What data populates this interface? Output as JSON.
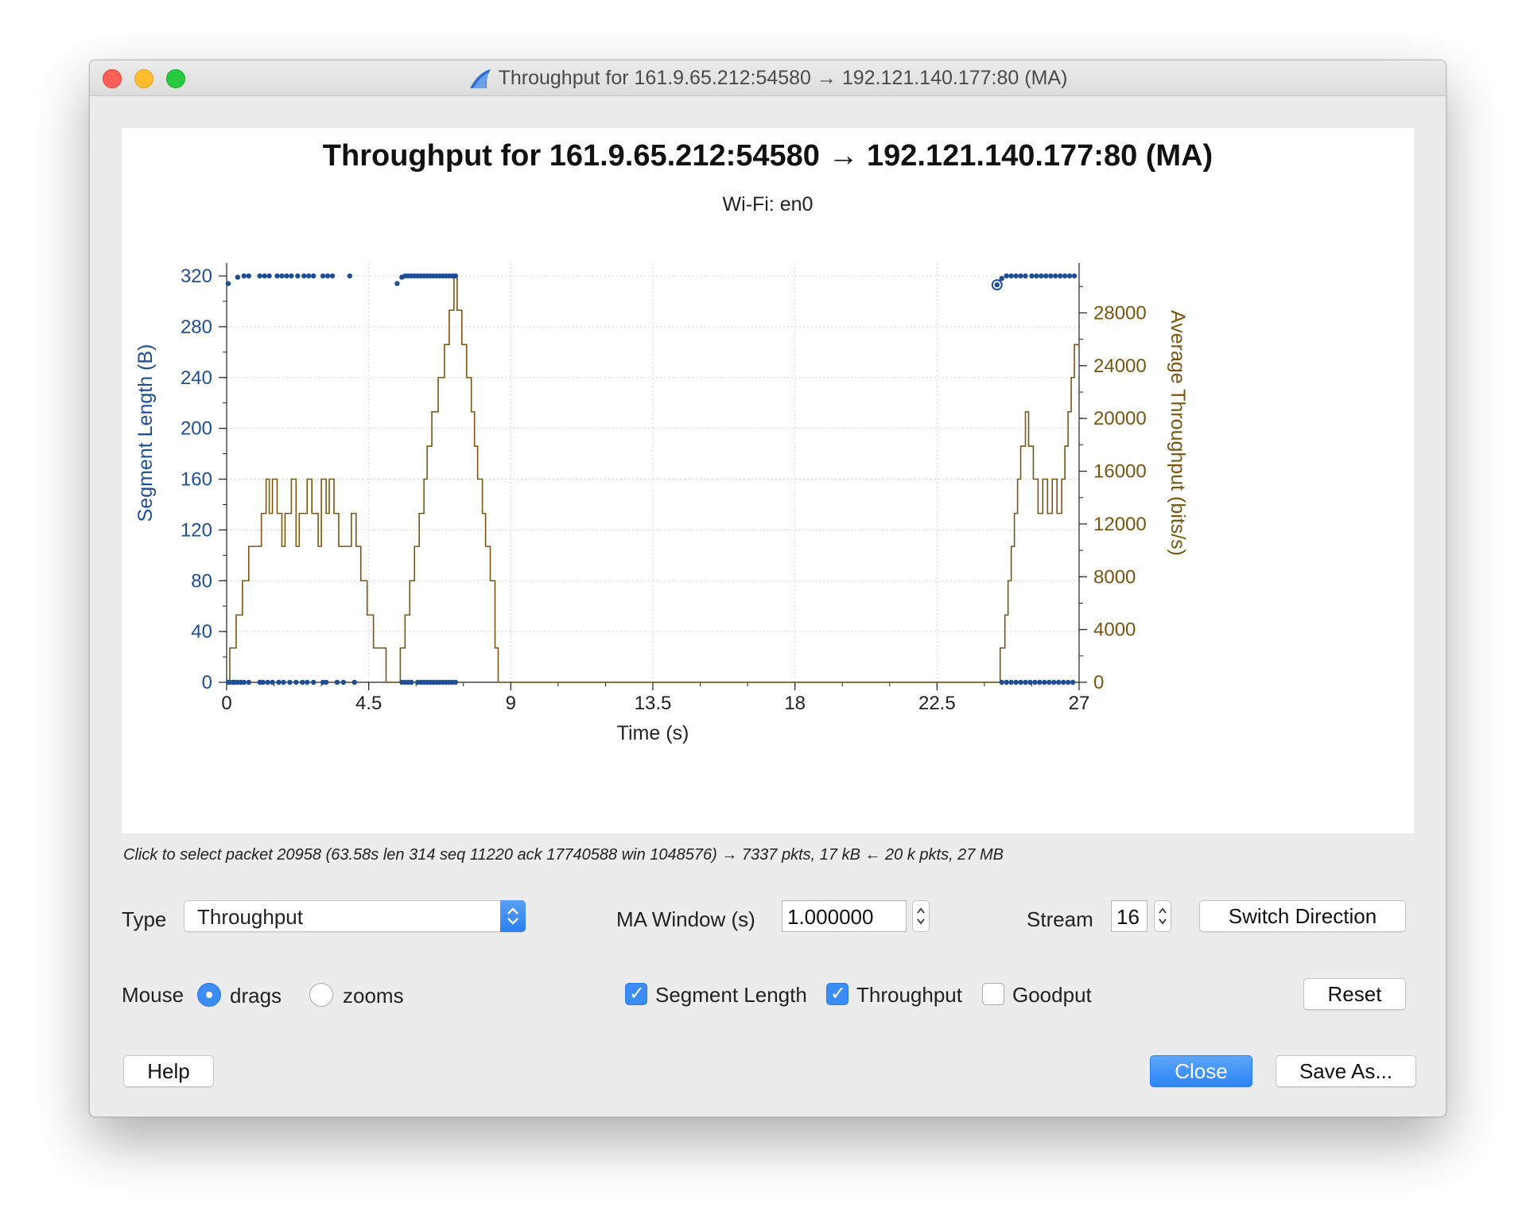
{
  "window": {
    "title": "Throughput for 161.9.65.212:54580 → 192.121.140.177:80 (MA)",
    "icon": "wireshark-fin-icon"
  },
  "plot": {
    "title": "Throughput for 161.9.65.212:54580 → 192.121.140.177:80 (MA)",
    "subtitle": "Wi-Fi: en0"
  },
  "chart_data": {
    "type": "scatter+line",
    "title": "Throughput for 161.9.65.212:54580 → 192.121.140.177:80 (MA)",
    "subtitle": "Wi-Fi: en0",
    "xlabel": "Time (s)",
    "ylabel_left": "Segment Length (B)",
    "ylabel_right": "Average Throughput (bits/s)",
    "xlim": [
      0,
      27
    ],
    "ylim_left": [
      0,
      320
    ],
    "ylim_right": [
      0,
      30800
    ],
    "x_ticks": [
      "0",
      "4.5",
      "9",
      "13.5",
      "18",
      "22.5",
      "27"
    ],
    "y_left_ticks": [
      "0",
      "40",
      "80",
      "120",
      "160",
      "200",
      "240",
      "280",
      "320"
    ],
    "y_right_ticks": [
      "0",
      "4000",
      "8000",
      "12000",
      "16000",
      "20000",
      "24000",
      "28000"
    ],
    "grid": true,
    "colors": {
      "segment": "#1f4e96",
      "throughput": "#7a5510"
    },
    "series": [
      {
        "name": "Segment Length",
        "style": "points",
        "points": [
          [
            0.05,
            314
          ],
          [
            0.35,
            319
          ],
          [
            0.55,
            320
          ],
          [
            0.7,
            320
          ],
          [
            1.05,
            320
          ],
          [
            1.2,
            320
          ],
          [
            1.35,
            320
          ],
          [
            1.6,
            320
          ],
          [
            1.75,
            320
          ],
          [
            1.9,
            320
          ],
          [
            2.05,
            320
          ],
          [
            2.25,
            320
          ],
          [
            2.45,
            320
          ],
          [
            2.6,
            320
          ],
          [
            2.75,
            320
          ],
          [
            3.05,
            320
          ],
          [
            3.2,
            320
          ],
          [
            3.35,
            320
          ],
          [
            3.9,
            320
          ],
          [
            0.05,
            0
          ],
          [
            0.1,
            0
          ],
          [
            0.2,
            0
          ],
          [
            0.25,
            0
          ],
          [
            0.35,
            0
          ],
          [
            0.45,
            0
          ],
          [
            0.55,
            0
          ],
          [
            0.7,
            0
          ],
          [
            1.05,
            0
          ],
          [
            1.15,
            0
          ],
          [
            1.3,
            0
          ],
          [
            1.45,
            0
          ],
          [
            1.65,
            0
          ],
          [
            1.8,
            0
          ],
          [
            2.0,
            0
          ],
          [
            2.2,
            0
          ],
          [
            2.4,
            0
          ],
          [
            2.55,
            0
          ],
          [
            2.75,
            0
          ],
          [
            3.05,
            0
          ],
          [
            3.15,
            0
          ],
          [
            3.5,
            0
          ],
          [
            3.7,
            0
          ],
          [
            4.05,
            0
          ],
          [
            5.4,
            314
          ],
          [
            5.55,
            319
          ],
          [
            5.65,
            320
          ],
          [
            5.75,
            320
          ],
          [
            5.85,
            320
          ],
          [
            5.95,
            320
          ],
          [
            6.05,
            320
          ],
          [
            6.15,
            320
          ],
          [
            6.25,
            320
          ],
          [
            6.35,
            320
          ],
          [
            6.45,
            320
          ],
          [
            6.55,
            320
          ],
          [
            6.65,
            320
          ],
          [
            6.75,
            320
          ],
          [
            6.85,
            320
          ],
          [
            6.95,
            320
          ],
          [
            7.05,
            320
          ],
          [
            7.15,
            320
          ],
          [
            7.25,
            320
          ],
          [
            5.55,
            0
          ],
          [
            5.65,
            0
          ],
          [
            5.75,
            0
          ],
          [
            5.85,
            0
          ],
          [
            6.05,
            0
          ],
          [
            6.15,
            0
          ],
          [
            6.25,
            0
          ],
          [
            6.35,
            0
          ],
          [
            6.45,
            0
          ],
          [
            6.55,
            0
          ],
          [
            6.65,
            0
          ],
          [
            6.75,
            0
          ],
          [
            6.85,
            0
          ],
          [
            6.95,
            0
          ],
          [
            7.05,
            0
          ],
          [
            7.15,
            0
          ],
          [
            7.25,
            0
          ],
          [
            24.4,
            313
          ],
          [
            24.55,
            318
          ],
          [
            24.7,
            320
          ],
          [
            24.85,
            320
          ],
          [
            25.0,
            320
          ],
          [
            25.15,
            320
          ],
          [
            25.3,
            320
          ],
          [
            25.5,
            320
          ],
          [
            25.65,
            320
          ],
          [
            25.8,
            320
          ],
          [
            25.95,
            320
          ],
          [
            26.1,
            320
          ],
          [
            26.25,
            320
          ],
          [
            26.4,
            320
          ],
          [
            26.55,
            320
          ],
          [
            26.7,
            320
          ],
          [
            26.85,
            320
          ],
          [
            24.55,
            0
          ],
          [
            24.7,
            0
          ],
          [
            24.85,
            0
          ],
          [
            25.0,
            0
          ],
          [
            25.15,
            0
          ],
          [
            25.3,
            0
          ],
          [
            25.45,
            0
          ],
          [
            25.6,
            0
          ],
          [
            25.75,
            0
          ],
          [
            25.9,
            0
          ],
          [
            26.05,
            0
          ],
          [
            26.2,
            0
          ],
          [
            26.35,
            0
          ],
          [
            26.5,
            0
          ],
          [
            26.65,
            0
          ],
          [
            26.8,
            0
          ]
        ]
      },
      {
        "name": "Throughput",
        "style": "step",
        "points": [
          [
            0,
            0
          ],
          [
            0.1,
            2600
          ],
          [
            0.3,
            5100
          ],
          [
            0.5,
            7700
          ],
          [
            0.7,
            10300
          ],
          [
            1.1,
            12800
          ],
          [
            1.25,
            15400
          ],
          [
            1.35,
            12800
          ],
          [
            1.45,
            15400
          ],
          [
            1.6,
            12800
          ],
          [
            1.75,
            10300
          ],
          [
            1.85,
            12800
          ],
          [
            2.05,
            15400
          ],
          [
            2.2,
            10300
          ],
          [
            2.3,
            12800
          ],
          [
            2.55,
            15400
          ],
          [
            2.7,
            12800
          ],
          [
            2.9,
            10300
          ],
          [
            3.0,
            15400
          ],
          [
            3.15,
            12800
          ],
          [
            3.25,
            15400
          ],
          [
            3.4,
            12800
          ],
          [
            3.55,
            10300
          ],
          [
            3.95,
            12800
          ],
          [
            4.1,
            10300
          ],
          [
            4.25,
            7700
          ],
          [
            4.45,
            5100
          ],
          [
            4.65,
            2600
          ],
          [
            4.95,
            2600
          ],
          [
            5.05,
            0
          ],
          [
            5.4,
            0
          ],
          [
            5.5,
            2600
          ],
          [
            5.65,
            5100
          ],
          [
            5.8,
            7700
          ],
          [
            5.95,
            10300
          ],
          [
            6.1,
            12800
          ],
          [
            6.25,
            15400
          ],
          [
            6.35,
            17900
          ],
          [
            6.5,
            20500
          ],
          [
            6.7,
            23100
          ],
          [
            6.9,
            25600
          ],
          [
            7.05,
            28200
          ],
          [
            7.2,
            30800
          ],
          [
            7.3,
            28200
          ],
          [
            7.45,
            25600
          ],
          [
            7.6,
            23100
          ],
          [
            7.75,
            20500
          ],
          [
            7.85,
            17900
          ],
          [
            7.95,
            15400
          ],
          [
            8.1,
            12800
          ],
          [
            8.2,
            10300
          ],
          [
            8.35,
            7700
          ],
          [
            8.5,
            2600
          ],
          [
            8.6,
            0
          ],
          [
            24.4,
            0
          ],
          [
            24.5,
            2600
          ],
          [
            24.65,
            5100
          ],
          [
            24.75,
            7700
          ],
          [
            24.85,
            10300
          ],
          [
            24.95,
            12800
          ],
          [
            25.05,
            15400
          ],
          [
            25.15,
            17900
          ],
          [
            25.3,
            20500
          ],
          [
            25.4,
            17900
          ],
          [
            25.55,
            15400
          ],
          [
            25.7,
            12800
          ],
          [
            25.85,
            15400
          ],
          [
            26.0,
            12800
          ],
          [
            26.15,
            15400
          ],
          [
            26.3,
            12800
          ],
          [
            26.45,
            15400
          ],
          [
            26.55,
            17900
          ],
          [
            26.65,
            20500
          ],
          [
            26.75,
            23100
          ],
          [
            26.85,
            25600
          ],
          [
            26.95,
            25600
          ]
        ]
      }
    ]
  },
  "status": {
    "text": "Click to select packet 20958 (63.58s len 314 seq 11220 ack 17740588 win 1048576) → 7337 pkts, 17 kB ← 20 k pkts, 27 MB"
  },
  "controls": {
    "type_label": "Type",
    "type_value": "Throughput",
    "ma_window_label": "MA Window (s)",
    "ma_window_value": "1.000000",
    "stream_label": "Stream",
    "stream_value": "16",
    "switch_direction": "Switch Direction",
    "mouse_label": "Mouse",
    "mouse_drags": "drags",
    "mouse_zooms": "zooms",
    "mouse_mode": "drags",
    "check_segment": "Segment Length",
    "check_throughput": "Throughput",
    "check_goodput": "Goodput",
    "segment_checked": true,
    "throughput_checked": true,
    "goodput_checked": false,
    "reset": "Reset",
    "help": "Help",
    "close": "Close",
    "save_as": "Save As..."
  }
}
